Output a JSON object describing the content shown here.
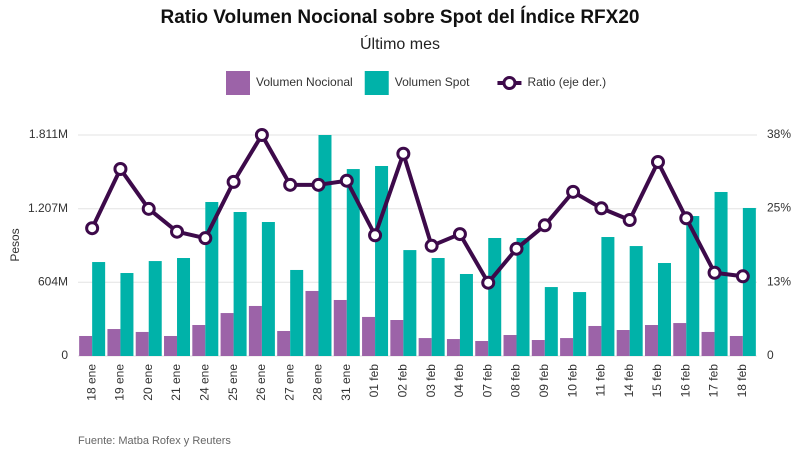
{
  "chart_data": {
    "type": "bar-line",
    "title": "Ratio Volumen Nocional sobre Spot del Índice RFX20",
    "subtitle": "Último mes",
    "y_label": "Pesos",
    "source": "Fuente: Matba Rofex y Reuters",
    "categories": [
      "18 ene",
      "19 ene",
      "20 ene",
      "21 ene",
      "24 ene",
      "25 ene",
      "26 ene",
      "27 ene",
      "28 ene",
      "31 ene",
      "01 feb",
      "02 feb",
      "03 feb",
      "04 feb",
      "07 feb",
      "08 feb",
      "09 feb",
      "10 feb",
      "11 feb",
      "14 feb",
      "15 feb",
      "16 feb",
      "17 feb",
      "18 feb"
    ],
    "series": [
      {
        "name": "Volumen Nocional",
        "color": "#9c63a8",
        "type": "bar",
        "values": [
          164,
          221,
          197,
          164,
          254,
          352,
          410,
          205,
          533,
          459,
          320,
          295,
          147,
          139,
          123,
          172,
          131,
          147,
          246,
          213,
          254,
          270,
          197,
          164
        ]
      },
      {
        "name": "Volumen Spot",
        "color": "#00b2a9",
        "type": "bar",
        "values": [
          770,
          680,
          778,
          803,
          1262,
          1180,
          1098,
          705,
          1811,
          1532,
          1557,
          868,
          803,
          672,
          967,
          967,
          565,
          524,
          975,
          901,
          762,
          1147,
          1344,
          1213
        ]
      },
      {
        "name": "Ratio (eje der.)",
        "color": "#3d0a4a",
        "type": "line",
        "axis": "y2",
        "values": [
          21.8,
          31.9,
          25.1,
          21.2,
          20.1,
          29.7,
          37.7,
          29.2,
          29.2,
          29.9,
          20.6,
          34.5,
          18.8,
          20.8,
          12.5,
          18.3,
          22.3,
          28.0,
          25.2,
          23.2,
          33.1,
          23.5,
          14.2,
          13.6
        ]
      }
    ],
    "ylim": [
      0,
      1811
    ],
    "yticks": [
      0,
      {
        "value": 604,
        "label": "604M"
      },
      {
        "value": 1207,
        "label": "1.207M"
      },
      {
        "value": 1811,
        "label": "1.811M"
      }
    ],
    "y2lim": [
      0,
      37.7
    ],
    "y2ticks": [
      0,
      {
        "value": 12.6,
        "label": "13%"
      },
      {
        "value": 25.2,
        "label": "25%"
      },
      {
        "value": 37.7,
        "label": "38%"
      }
    ],
    "grid": true
  }
}
